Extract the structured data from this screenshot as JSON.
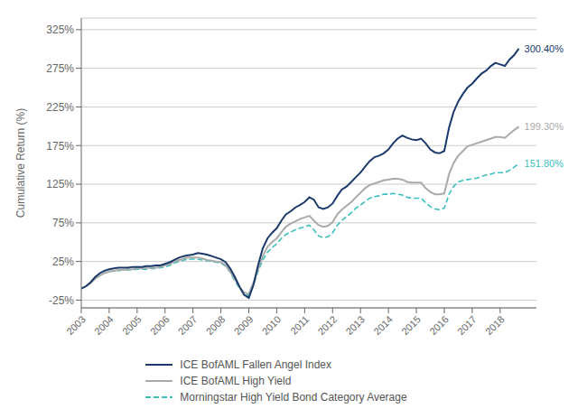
{
  "chart_data": {
    "type": "line",
    "ylabel": "Cumulative Return (%)",
    "xlim": [
      2003.0,
      2019.3
    ],
    "ylim": [
      -35,
      340
    ],
    "xticks": [
      2003,
      2004,
      2005,
      2006,
      2007,
      2008,
      2009,
      2010,
      2011,
      2012,
      2013,
      2014,
      2015,
      2016,
      2017,
      2018
    ],
    "yticks": [
      {
        "value": -25,
        "label": "-25%"
      },
      {
        "value": 25,
        "label": "25%"
      },
      {
        "value": 75,
        "label": "75%"
      },
      {
        "value": 125,
        "label": "125%"
      },
      {
        "value": 175,
        "label": "175%"
      },
      {
        "value": 225,
        "label": "225%"
      },
      {
        "value": 275,
        "label": "275%"
      },
      {
        "value": 325,
        "label": "325%"
      }
    ],
    "grid": true,
    "legend": "bottom",
    "series": [
      {
        "name": "ICE BofAML Fallen Angel Index",
        "color": "#1a3a6b",
        "line_style": "solid",
        "end_label": "300.40%",
        "x": [
          2003.0,
          2003.17,
          2003.33,
          2003.5,
          2003.67,
          2003.83,
          2004.0,
          2004.17,
          2004.33,
          2004.5,
          2004.67,
          2004.83,
          2005.0,
          2005.17,
          2005.33,
          2005.5,
          2005.67,
          2005.83,
          2006.0,
          2006.17,
          2006.33,
          2006.5,
          2006.67,
          2006.83,
          2007.0,
          2007.17,
          2007.33,
          2007.5,
          2007.67,
          2007.83,
          2008.0,
          2008.17,
          2008.33,
          2008.5,
          2008.67,
          2008.83,
          2009.0,
          2009.17,
          2009.33,
          2009.5,
          2009.67,
          2009.83,
          2010.0,
          2010.17,
          2010.33,
          2010.5,
          2010.67,
          2010.83,
          2011.0,
          2011.17,
          2011.33,
          2011.5,
          2011.67,
          2011.83,
          2012.0,
          2012.17,
          2012.33,
          2012.5,
          2012.67,
          2012.83,
          2013.0,
          2013.17,
          2013.33,
          2013.5,
          2013.67,
          2013.83,
          2014.0,
          2014.17,
          2014.33,
          2014.5,
          2014.67,
          2014.83,
          2015.0,
          2015.17,
          2015.33,
          2015.5,
          2015.67,
          2015.83,
          2016.0,
          2016.17,
          2016.33,
          2016.5,
          2016.67,
          2016.83,
          2017.0,
          2017.17,
          2017.33,
          2017.5,
          2017.67,
          2017.83,
          2018.0,
          2018.17,
          2018.33,
          2018.5,
          2018.67
        ],
        "values": [
          -10,
          -7,
          -2,
          5,
          10,
          13,
          15,
          16,
          17,
          17,
          17,
          18,
          18,
          18,
          19,
          19,
          20,
          20,
          22,
          24,
          27,
          30,
          32,
          33,
          34,
          36,
          35,
          34,
          32,
          30,
          28,
          24,
          16,
          5,
          -8,
          -18,
          -22,
          -5,
          20,
          42,
          55,
          62,
          68,
          78,
          86,
          90,
          95,
          98,
          102,
          108,
          105,
          95,
          93,
          95,
          100,
          110,
          118,
          122,
          128,
          134,
          140,
          148,
          155,
          160,
          162,
          165,
          170,
          178,
          184,
          188,
          185,
          183,
          182,
          184,
          178,
          170,
          166,
          165,
          168,
          198,
          218,
          232,
          242,
          250,
          255,
          262,
          268,
          272,
          278,
          282,
          280,
          278,
          286,
          292,
          300.4
        ]
      },
      {
        "name": "ICE BofAML High Yield",
        "color": "#aaaaaa",
        "line_style": "solid",
        "end_label": "199.30%",
        "x": [
          2003.0,
          2003.17,
          2003.33,
          2003.5,
          2003.67,
          2003.83,
          2004.0,
          2004.17,
          2004.33,
          2004.5,
          2004.67,
          2004.83,
          2005.0,
          2005.17,
          2005.33,
          2005.5,
          2005.67,
          2005.83,
          2006.0,
          2006.17,
          2006.33,
          2006.5,
          2006.67,
          2006.83,
          2007.0,
          2007.17,
          2007.33,
          2007.5,
          2007.67,
          2007.83,
          2008.0,
          2008.17,
          2008.33,
          2008.5,
          2008.67,
          2008.83,
          2009.0,
          2009.17,
          2009.33,
          2009.5,
          2009.67,
          2009.83,
          2010.0,
          2010.17,
          2010.33,
          2010.5,
          2010.67,
          2010.83,
          2011.0,
          2011.17,
          2011.33,
          2011.5,
          2011.67,
          2011.83,
          2012.0,
          2012.17,
          2012.33,
          2012.5,
          2012.67,
          2012.83,
          2013.0,
          2013.17,
          2013.33,
          2013.5,
          2013.67,
          2013.83,
          2014.0,
          2014.17,
          2014.33,
          2014.5,
          2014.67,
          2014.83,
          2015.0,
          2015.17,
          2015.33,
          2015.5,
          2015.67,
          2015.83,
          2016.0,
          2016.17,
          2016.33,
          2016.5,
          2016.67,
          2016.83,
          2017.0,
          2017.17,
          2017.33,
          2017.5,
          2017.67,
          2017.83,
          2018.0,
          2018.17,
          2018.33,
          2018.5,
          2018.67
        ],
        "values": [
          -10,
          -7,
          -3,
          3,
          7,
          10,
          12,
          13,
          14,
          14,
          15,
          15,
          16,
          16,
          17,
          17,
          17,
          18,
          20,
          22,
          25,
          27,
          29,
          30,
          30,
          30,
          29,
          27,
          26,
          25,
          24,
          20,
          12,
          2,
          -8,
          -15,
          -17,
          -2,
          15,
          32,
          44,
          50,
          55,
          63,
          70,
          74,
          77,
          80,
          82,
          84,
          78,
          72,
          70,
          71,
          76,
          86,
          92,
          97,
          102,
          108,
          114,
          120,
          124,
          126,
          128,
          130,
          131,
          132,
          132,
          131,
          128,
          127,
          127,
          127,
          120,
          115,
          112,
          112,
          113,
          138,
          152,
          162,
          168,
          174,
          176,
          178,
          180,
          182,
          184,
          186,
          186,
          185,
          190,
          195,
          199.3
        ]
      },
      {
        "name": "Morningstar High Yield Bond Category Average",
        "color": "#3bbfbf",
        "line_style": "dashed",
        "end_label": "151.80%",
        "x": [
          2003.5,
          2003.67,
          2003.83,
          2004.0,
          2004.17,
          2004.33,
          2004.5,
          2004.67,
          2004.83,
          2005.0,
          2005.17,
          2005.33,
          2005.5,
          2005.67,
          2005.83,
          2006.0,
          2006.17,
          2006.33,
          2006.5,
          2006.67,
          2006.83,
          2007.0,
          2007.17,
          2007.33,
          2007.5,
          2007.67,
          2007.83,
          2008.0,
          2008.17,
          2008.33,
          2008.5,
          2008.67,
          2008.83,
          2009.0,
          2009.17,
          2009.33,
          2009.5,
          2009.67,
          2009.83,
          2010.0,
          2010.17,
          2010.33,
          2010.5,
          2010.67,
          2010.83,
          2011.0,
          2011.17,
          2011.33,
          2011.5,
          2011.67,
          2011.83,
          2012.0,
          2012.17,
          2012.33,
          2012.5,
          2012.67,
          2012.83,
          2013.0,
          2013.17,
          2013.33,
          2013.5,
          2013.67,
          2013.83,
          2014.0,
          2014.17,
          2014.33,
          2014.5,
          2014.67,
          2014.83,
          2015.0,
          2015.17,
          2015.33,
          2015.5,
          2015.67,
          2015.83,
          2016.0,
          2016.17,
          2016.33,
          2016.5,
          2016.67,
          2016.83,
          2017.0,
          2017.17,
          2017.33,
          2017.5,
          2017.67,
          2017.83,
          2018.0,
          2018.17,
          2018.33,
          2018.5,
          2018.67
        ],
        "values": [
          3,
          7,
          10,
          12,
          13,
          13,
          14,
          14,
          14,
          15,
          15,
          15,
          16,
          16,
          17,
          18,
          20,
          23,
          25,
          27,
          28,
          28,
          28,
          27,
          26,
          25,
          24,
          23,
          19,
          11,
          0,
          -10,
          -16,
          -19,
          -4,
          12,
          27,
          37,
          43,
          48,
          55,
          60,
          63,
          66,
          68,
          70,
          72,
          66,
          58,
          56,
          57,
          62,
          72,
          78,
          83,
          88,
          94,
          98,
          103,
          107,
          109,
          110,
          112,
          112,
          113,
          112,
          111,
          108,
          107,
          107,
          107,
          101,
          96,
          93,
          92,
          94,
          112,
          122,
          128,
          130,
          131,
          132,
          133,
          135,
          137,
          138,
          140,
          140,
          140,
          143,
          147,
          151.8
        ]
      }
    ]
  }
}
